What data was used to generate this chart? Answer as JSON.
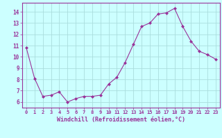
{
  "x": [
    0,
    1,
    2,
    3,
    4,
    5,
    6,
    7,
    8,
    9,
    10,
    11,
    12,
    13,
    14,
    15,
    16,
    17,
    18,
    19,
    20,
    21,
    22,
    23
  ],
  "y": [
    10.8,
    8.1,
    6.5,
    6.6,
    6.9,
    6.0,
    6.3,
    6.5,
    6.5,
    6.6,
    7.6,
    8.2,
    9.5,
    11.1,
    12.7,
    13.0,
    13.8,
    13.9,
    14.3,
    12.7,
    11.4,
    10.5,
    10.2,
    9.8
  ],
  "line_color": "#993399",
  "marker": "D",
  "marker_size": 2,
  "bg_color": "#ccffff",
  "grid_color": "#aadddd",
  "xlabel": "Windchill (Refroidissement éolien,°C)",
  "xlabel_color": "#993399",
  "tick_color": "#993399",
  "label_color": "#993399",
  "ylim": [
    5.5,
    14.8
  ],
  "xlim": [
    -0.5,
    23.5
  ],
  "yticks": [
    6,
    7,
    8,
    9,
    10,
    11,
    12,
    13,
    14
  ],
  "xticks": [
    0,
    1,
    2,
    3,
    4,
    5,
    6,
    7,
    8,
    9,
    10,
    11,
    12,
    13,
    14,
    15,
    16,
    17,
    18,
    19,
    20,
    21,
    22,
    23
  ],
  "spine_color": "#993399"
}
